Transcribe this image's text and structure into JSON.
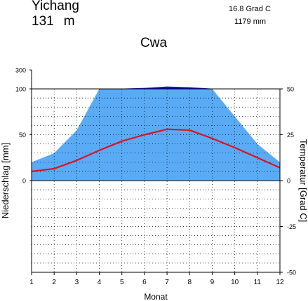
{
  "header": {
    "station": "Yichang",
    "elevation_value": "131",
    "elevation_unit": "m",
    "mean_temperature": "16.8 Grad C",
    "annual_precipitation": "1179 mm",
    "climate_class": "Cwa"
  },
  "colors": {
    "precip_fill": "#5aabf5",
    "precip_excess_fill": "#0a12e6",
    "temperature_line": "#e01020",
    "grid": "#000000"
  },
  "chart_data": {
    "type": "line",
    "categories": [
      "1",
      "2",
      "3",
      "4",
      "5",
      "6",
      "7",
      "8",
      "9",
      "10",
      "11",
      "12"
    ],
    "xlabel": "Monat",
    "ylabel_left": "Niederschlag [mm]",
    "ylabel_right": "Temperatur [Grad C]",
    "precip_ticks": [
      0,
      50,
      100,
      300
    ],
    "precip_scale_breaks": {
      "linear_max": 100,
      "compressed_max": 300
    },
    "temp_ticks": [
      -50,
      -25,
      0,
      25,
      50
    ],
    "temp_ylim": [
      -50,
      50
    ],
    "series": [
      {
        "name": "Niederschlag",
        "unit": "mm",
        "values": [
          20,
          30,
          55,
          100,
          103,
          110,
          125,
          118,
          103,
          70,
          40,
          20
        ]
      },
      {
        "name": "Temperatur",
        "unit": "Grad C",
        "values": [
          5,
          6.5,
          11,
          16.5,
          21.5,
          25,
          28,
          27.5,
          23,
          18,
          12.5,
          7
        ]
      }
    ]
  }
}
